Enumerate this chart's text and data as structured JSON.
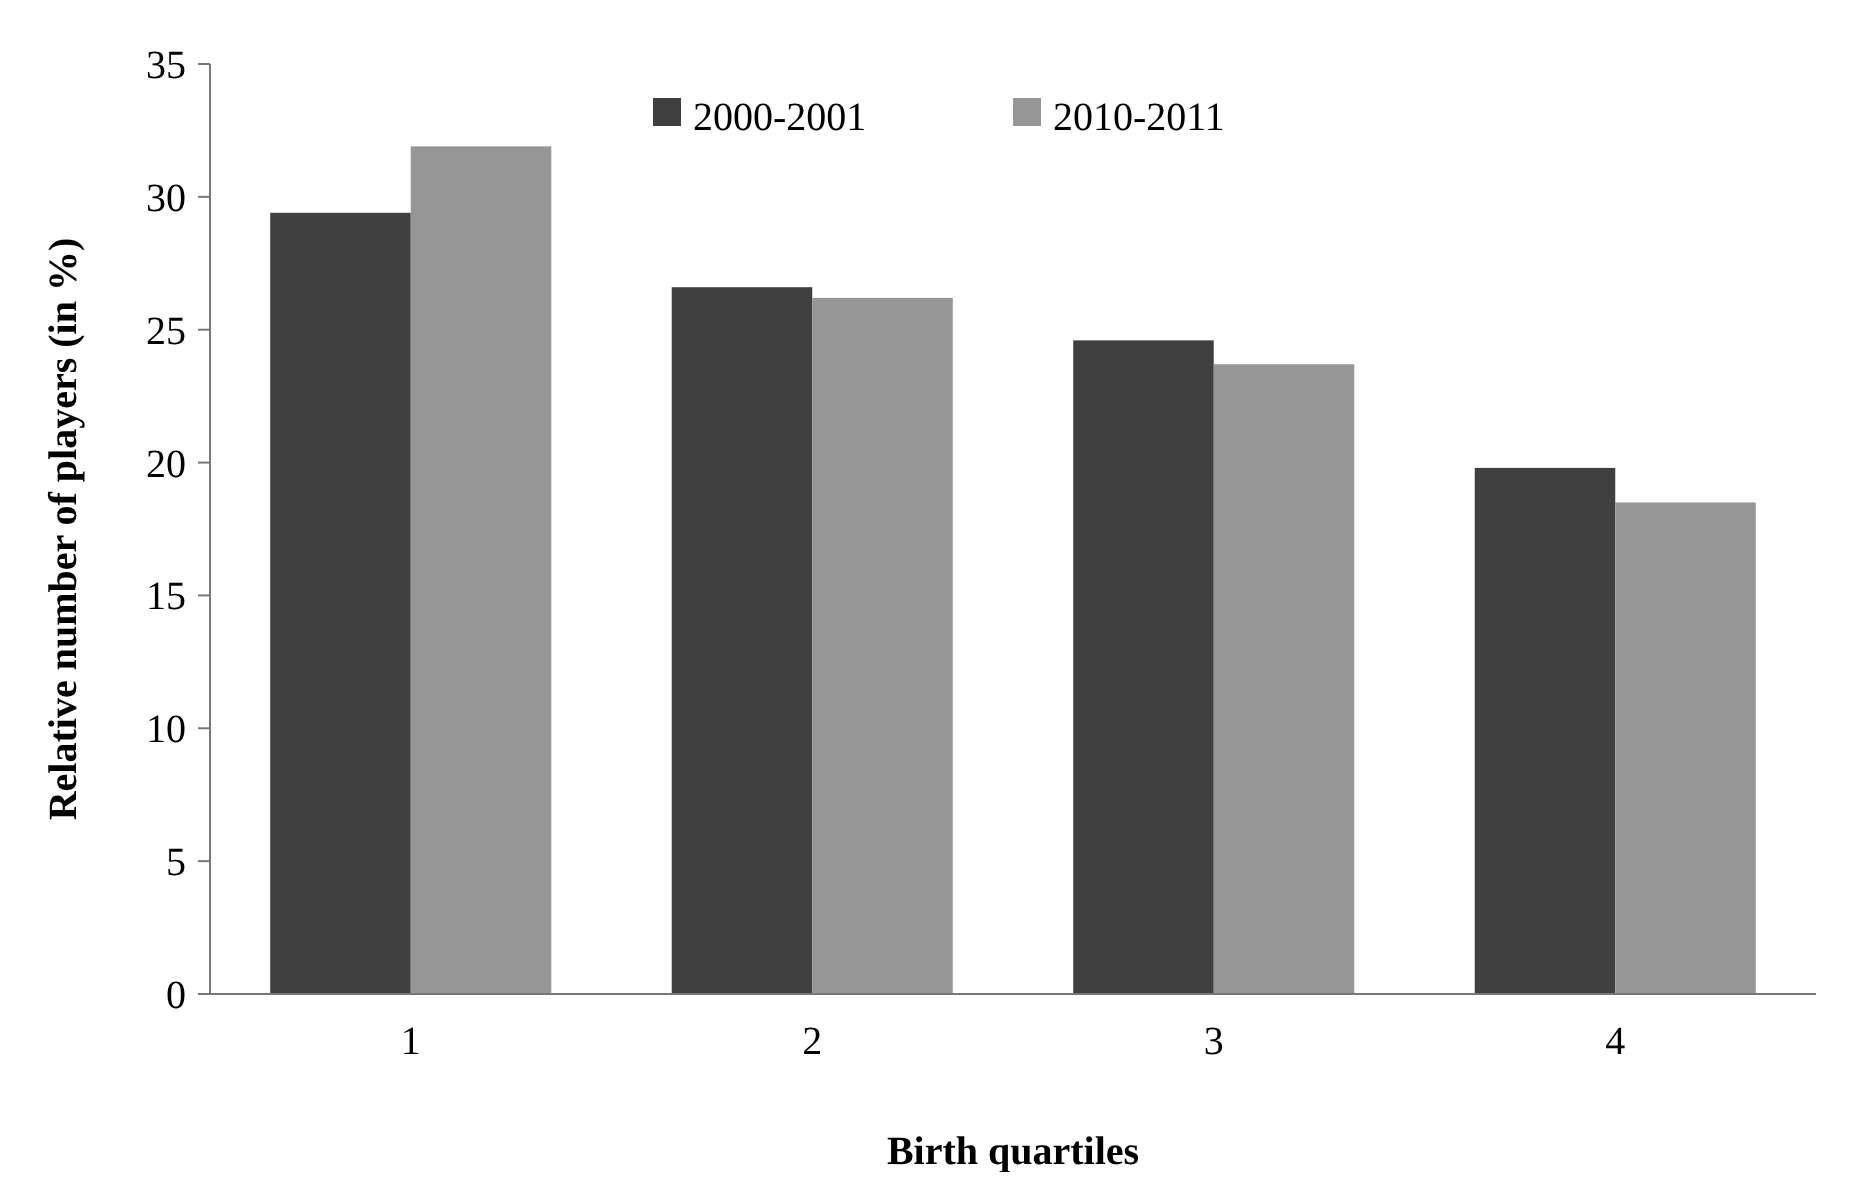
{
  "chart_data": {
    "type": "bar",
    "xlabel": "Birth quartiles",
    "ylabel": "Relative number of players (in %)",
    "categories": [
      "1",
      "2",
      "3",
      "4"
    ],
    "series": [
      {
        "name": "2000-2001",
        "color": "#404040",
        "values": [
          29.4,
          26.6,
          24.6,
          19.8
        ]
      },
      {
        "name": "2010-2011",
        "color": "#969696",
        "values": [
          31.9,
          26.2,
          23.7,
          18.5
        ]
      }
    ],
    "ylim": [
      0,
      35
    ],
    "yticks": [
      0,
      5,
      10,
      15,
      20,
      25,
      30,
      35
    ],
    "grid": false,
    "legend": "top"
  }
}
